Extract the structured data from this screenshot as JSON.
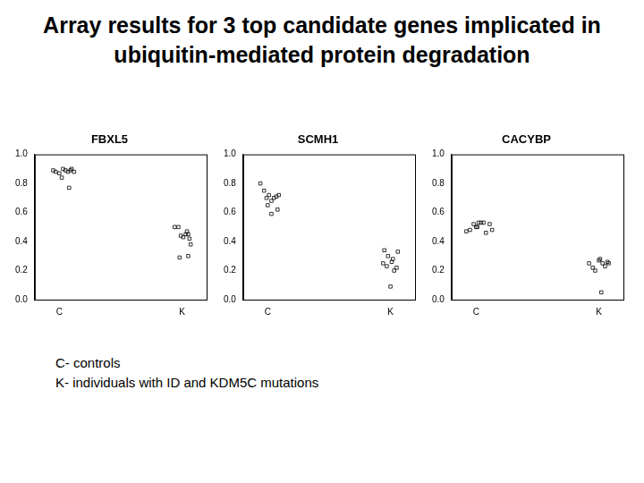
{
  "title": "Array results for 3 top candidate genes implicated in ubiquitin-mediated protein degradation",
  "notes": [
    "C- controls",
    "K- individuals with ID and KDM5C mutations"
  ],
  "chart_data": [
    {
      "type": "scatter",
      "title": "FBXL5",
      "color": "#000000",
      "marker": "square",
      "grid": false,
      "x": [
        0.95,
        0.97,
        1.0,
        1.03,
        1.05,
        1.02,
        1.07,
        1.09,
        1.1,
        1.08,
        1.12,
        1.94,
        1.97,
        1.99,
        2.01,
        2.04,
        2.05,
        2.06,
        2.07,
        1.98,
        2.05,
        2.03
      ],
      "values": [
        0.89,
        0.88,
        0.87,
        0.9,
        0.89,
        0.84,
        0.88,
        0.89,
        0.9,
        0.77,
        0.88,
        0.5,
        0.5,
        0.44,
        0.43,
        0.47,
        0.45,
        0.42,
        0.38,
        0.29,
        0.3,
        0.45
      ],
      "xlim": [
        0.8,
        2.2
      ],
      "xticks": [
        {
          "value": 1,
          "label": "C"
        },
        {
          "value": 2,
          "label": "K"
        }
      ],
      "ylim": [
        0,
        1
      ],
      "yticks": [
        {
          "value": 0,
          "label": "0.0"
        },
        {
          "value": 0.2,
          "label": "0.2"
        },
        {
          "value": 0.4,
          "label": "0.4"
        },
        {
          "value": 0.6,
          "label": "0.6"
        },
        {
          "value": 0.8,
          "label": "0.8"
        },
        {
          "value": 1,
          "label": "1.0"
        }
      ]
    },
    {
      "type": "scatter",
      "title": "SCMH1",
      "color": "#000000",
      "marker": "square",
      "grid": false,
      "x": [
        0.94,
        0.97,
        0.99,
        1.01,
        1.03,
        1.0,
        1.05,
        1.07,
        1.09,
        1.08,
        1.03,
        1.95,
        1.98,
        2.02,
        1.94,
        1.97,
        2.01,
        2.03,
        2.05,
        2.0,
        2.06
      ],
      "values": [
        0.8,
        0.75,
        0.7,
        0.72,
        0.68,
        0.65,
        0.7,
        0.71,
        0.72,
        0.62,
        0.59,
        0.34,
        0.3,
        0.28,
        0.25,
        0.23,
        0.26,
        0.2,
        0.22,
        0.09,
        0.33
      ],
      "xlim": [
        0.8,
        2.2
      ],
      "xticks": [
        {
          "value": 1,
          "label": "C"
        },
        {
          "value": 2,
          "label": "K"
        }
      ],
      "ylim": [
        0,
        1
      ],
      "yticks": [
        {
          "value": 0,
          "label": "0.0"
        },
        {
          "value": 0.2,
          "label": "0.2"
        },
        {
          "value": 0.4,
          "label": "0.4"
        },
        {
          "value": 0.6,
          "label": "0.6"
        },
        {
          "value": 0.8,
          "label": "0.8"
        },
        {
          "value": 1,
          "label": "1.0"
        }
      ]
    },
    {
      "type": "scatter",
      "title": "CACYBP",
      "color": "#000000",
      "marker": "square",
      "grid": false,
      "x": [
        0.92,
        0.95,
        0.98,
        1.0,
        1.02,
        1.04,
        1.06,
        1.01,
        1.08,
        1.11,
        1.13,
        1.92,
        1.95,
        1.97,
        2.0,
        2.01,
        2.03,
        2.05,
        2.07,
        2.02,
        2.08
      ],
      "values": [
        0.47,
        0.48,
        0.52,
        0.5,
        0.53,
        0.53,
        0.53,
        0.5,
        0.46,
        0.52,
        0.48,
        0.25,
        0.22,
        0.2,
        0.27,
        0.28,
        0.25,
        0.23,
        0.26,
        0.05,
        0.25
      ],
      "xlim": [
        0.8,
        2.2
      ],
      "xticks": [
        {
          "value": 1,
          "label": "C"
        },
        {
          "value": 2,
          "label": "K"
        }
      ],
      "ylim": [
        0,
        1
      ],
      "yticks": [
        {
          "value": 0,
          "label": "0.0"
        },
        {
          "value": 0.2,
          "label": "0.2"
        },
        {
          "value": 0.4,
          "label": "0.4"
        },
        {
          "value": 0.6,
          "label": "0.6"
        },
        {
          "value": 0.8,
          "label": "0.8"
        },
        {
          "value": 1,
          "label": "1.0"
        }
      ]
    }
  ]
}
